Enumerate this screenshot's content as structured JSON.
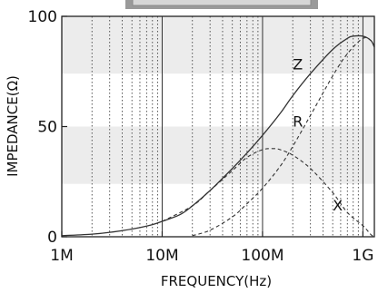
{
  "chart_data": {
    "type": "line",
    "xlabel": "FREQUENCY(Hz)",
    "ylabel": "IMPEDANCE(Ω)",
    "x_scale": "log",
    "xlim": [
      1000000,
      1300000000
    ],
    "ylim": [
      0,
      100
    ],
    "x_ticks": [
      {
        "value": 1000000,
        "label": "1M"
      },
      {
        "value": 10000000,
        "label": "10M"
      },
      {
        "value": 100000000,
        "label": "100M"
      },
      {
        "value": 1000000000,
        "label": "1G"
      }
    ],
    "y_ticks": [
      {
        "value": 0,
        "label": "0"
      },
      {
        "value": 50,
        "label": "50"
      },
      {
        "value": 100,
        "label": "100"
      }
    ],
    "grid": "vertical dotted at each decade subdivision; solid at decades",
    "background_bands": [
      [
        24,
        50
      ],
      [
        74,
        100
      ]
    ],
    "series": [
      {
        "name": "Z",
        "style": "solid",
        "x": [
          1000000,
          2000000,
          3000000,
          5000000,
          8000000,
          10000000,
          15000000,
          20000000,
          30000000,
          50000000,
          70000000,
          100000000,
          150000000,
          200000000,
          300000000,
          500000000,
          700000000,
          800000000,
          1000000000,
          1200000000,
          1300000000
        ],
        "y": [
          0.5,
          1.2,
          2,
          3.5,
          5.5,
          7,
          10,
          14,
          21,
          31,
          38,
          46,
          56,
          64,
          74,
          85,
          90,
          91,
          91,
          89,
          86
        ]
      },
      {
        "name": "R",
        "style": "dashed",
        "x": [
          20000000,
          30000000,
          50000000,
          70000000,
          100000000,
          150000000,
          200000000,
          300000000,
          500000000,
          700000000,
          1000000000,
          1200000000,
          1300000000
        ],
        "y": [
          0.5,
          3,
          9,
          15,
          22,
          32,
          41,
          55,
          73,
          83,
          90,
          89,
          86
        ]
      },
      {
        "name": "X",
        "style": "dashed",
        "x": [
          10000000,
          20000000,
          30000000,
          50000000,
          70000000,
          100000000,
          130000000,
          150000000,
          200000000,
          300000000,
          500000000,
          700000000,
          1000000000,
          1200000000,
          1300000000
        ],
        "y": [
          7,
          14,
          21,
          30,
          36,
          39.5,
          40,
          39.5,
          37,
          31,
          20,
          11,
          5,
          1,
          0
        ]
      }
    ]
  }
}
